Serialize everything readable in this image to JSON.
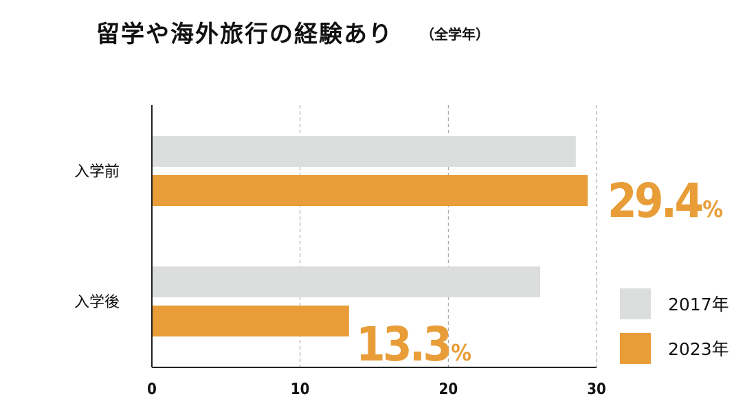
{
  "chart_data": {
    "type": "bar",
    "orientation": "horizontal",
    "title": "留学や海外旅行の経験あり",
    "subtitle": "（全学年）",
    "categories": [
      "入学前",
      "入学後"
    ],
    "series": [
      {
        "name": "2017年",
        "values": [
          28.6,
          26.2
        ],
        "color": "#DCDDDD"
      },
      {
        "name": "2023年",
        "values": [
          29.4,
          13.3
        ],
        "color": "#E89D38"
      }
    ],
    "data_labels": [
      {
        "category": "入学前",
        "series": "2023年",
        "value": "29.4",
        "unit": "%"
      },
      {
        "category": "入学後",
        "series": "2023年",
        "value": "13.3",
        "unit": "%"
      }
    ],
    "xlim": [
      0,
      30
    ],
    "xticks": [
      0,
      10,
      20,
      30
    ],
    "grid": "vertical dashed",
    "legend_position": "bottom-right"
  }
}
